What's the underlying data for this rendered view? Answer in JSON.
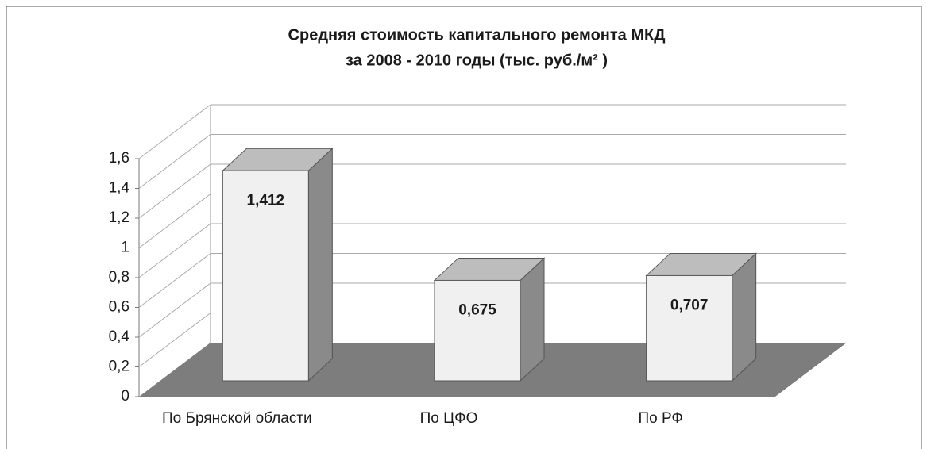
{
  "chart_data": {
    "type": "bar3d",
    "title": [
      "Средняя стоимость капитального ремонта МКД",
      "за 2008 - 2010 годы (тыс. руб./м² )"
    ],
    "categories": [
      "По Брянской области",
      "По ЦФО",
      "По РФ"
    ],
    "values": [
      1.412,
      0.675,
      0.707
    ],
    "value_labels": [
      "1,412",
      "0,675",
      "0,707"
    ],
    "ylim": [
      0,
      1.6
    ],
    "yticks": [
      0,
      {
        "value": 0.2,
        "label": "0,2"
      },
      {
        "value": 0.4,
        "label": "0,4"
      },
      {
        "value": 0.6,
        "label": "0,6"
      },
      {
        "value": 0.8,
        "label": "0,8"
      },
      1,
      {
        "value": 1.2,
        "label": "1,2"
      },
      {
        "value": 1.4,
        "label": "1,4"
      },
      {
        "value": 1.6,
        "label": "1,6"
      }
    ],
    "grid": true
  }
}
